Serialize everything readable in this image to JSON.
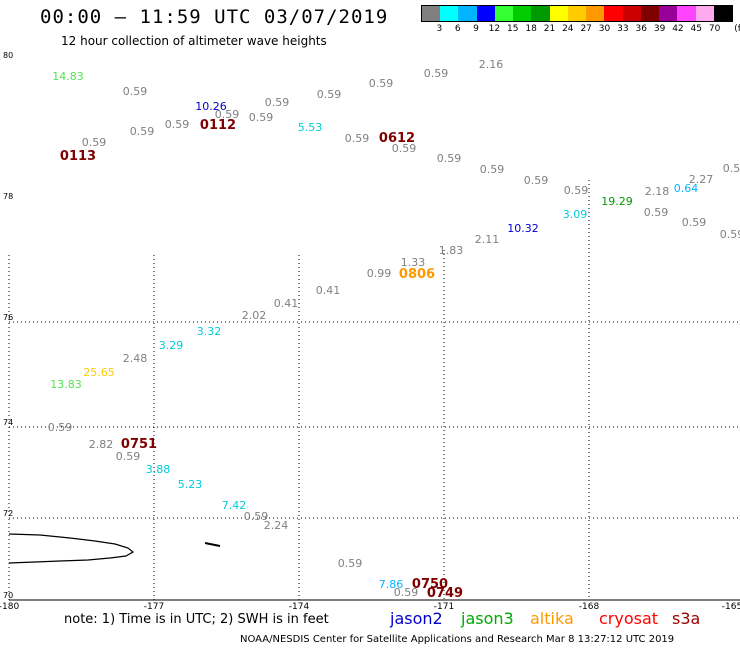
{
  "header": {
    "title": "00:00 – 11:59 UTC 03/07/2019",
    "subtitle": "12 hour collection of altimeter wave heights"
  },
  "scale": {
    "unit": "(ft)",
    "colors": [
      "#808080",
      "#00ffff",
      "#00b4ff",
      "#0000ff",
      "#33ff33",
      "#00cc00",
      "#009900",
      "#ffff00",
      "#ffcc00",
      "#ff9900",
      "#ff0000",
      "#cc0000",
      "#800000",
      "#990099",
      "#ff44ff",
      "#ffaaee",
      "#000000"
    ],
    "labels": [
      "3",
      "6",
      "9",
      "12",
      "15",
      "18",
      "21",
      "24",
      "27",
      "30",
      "33",
      "36",
      "39",
      "42",
      "45",
      "70"
    ]
  },
  "axes": {
    "lat_labels": [
      "80",
      "78",
      "76",
      "74",
      "72",
      "70"
    ],
    "lon_labels": [
      "-180",
      "-177",
      "-174",
      "-171",
      "-168",
      "-165"
    ]
  },
  "points": [
    {
      "t": "14.83",
      "c": "#55e255"
    },
    {
      "t": "0.59",
      "c": "#808080"
    },
    {
      "t": "10.26",
      "c": "#0000cc"
    },
    {
      "t": "0.59",
      "c": "#808080"
    },
    {
      "t": "0.59",
      "c": "#808080"
    },
    {
      "t": "0.59",
      "c": "#808080"
    },
    {
      "t": "0.59",
      "c": "#808080"
    },
    {
      "t": "0.59",
      "c": "#808080"
    },
    {
      "t": "2.16",
      "c": "#808080"
    },
    {
      "t": "0.59",
      "c": "#808080"
    },
    {
      "t": "0.59",
      "c": "#808080"
    },
    {
      "t": "0.59",
      "c": "#808080"
    },
    {
      "t": "0.59",
      "c": "#808080"
    },
    {
      "t": "5.53",
      "c": "#00ccdd"
    },
    {
      "t": "0.59",
      "c": "#808080"
    },
    {
      "t": "0.59",
      "c": "#808080"
    },
    {
      "t": "0.59",
      "c": "#808080"
    },
    {
      "t": "0.59",
      "c": "#808080"
    },
    {
      "t": "0.59",
      "c": "#808080"
    },
    {
      "t": "0.59",
      "c": "#808080"
    },
    {
      "t": "19.29",
      "c": "#009900"
    },
    {
      "t": "0.64",
      "c": "#00b4ff"
    },
    {
      "t": "2.18",
      "c": "#808080"
    },
    {
      "t": "2.27",
      "c": "#808080"
    },
    {
      "t": "3.09",
      "c": "#00ccdd"
    },
    {
      "t": "0.59",
      "c": "#808080"
    },
    {
      "t": "0.59",
      "c": "#808080"
    },
    {
      "t": "0.59",
      "c": "#808080"
    },
    {
      "t": "10.32",
      "c": "#0000cc"
    },
    {
      "t": "2.11",
      "c": "#808080"
    },
    {
      "t": "1.83",
      "c": "#808080"
    },
    {
      "t": "1.33",
      "c": "#808080"
    },
    {
      "t": "0.99",
      "c": "#808080"
    },
    {
      "t": "0.41",
      "c": "#808080"
    },
    {
      "t": "0.41",
      "c": "#808080"
    },
    {
      "t": "2.02",
      "c": "#808080"
    },
    {
      "t": "3.32",
      "c": "#00ccdd"
    },
    {
      "t": "3.29",
      "c": "#00ccdd"
    },
    {
      "t": "2.48",
      "c": "#808080"
    },
    {
      "t": "25.65",
      "c": "#ffcc00"
    },
    {
      "t": "13.83",
      "c": "#55e255"
    },
    {
      "t": "0.59",
      "c": "#808080"
    },
    {
      "t": "2.82",
      "c": "#808080"
    },
    {
      "t": "0.59",
      "c": "#808080"
    },
    {
      "t": "3.88",
      "c": "#00ccdd"
    },
    {
      "t": "5.23",
      "c": "#00ccdd"
    },
    {
      "t": "7.42",
      "c": "#00ccdd"
    },
    {
      "t": "0.59",
      "c": "#808080"
    },
    {
      "t": "2.24",
      "c": "#808080"
    },
    {
      "t": "0.59",
      "c": "#808080"
    },
    {
      "t": "7.86",
      "c": "#00b4ff"
    },
    {
      "t": "0.59",
      "c": "#808080"
    },
    {
      "t": "0.59",
      "c": "#808080"
    },
    {
      "t": "2.",
      "c": "#808080"
    }
  ],
  "times": [
    {
      "t": "0113",
      "c": "#800000"
    },
    {
      "t": "0112",
      "c": "#800000"
    },
    {
      "t": "0612",
      "c": "#800000"
    },
    {
      "t": "0806",
      "c": "#ff9900"
    },
    {
      "t": "0751",
      "c": "#800000"
    },
    {
      "t": "0750",
      "c": "#800000"
    },
    {
      "t": "0749",
      "c": "#800000"
    }
  ],
  "note": "note:  1) Time is in UTC;  2) SWH is in feet",
  "legend": [
    {
      "label": "jason2",
      "color": "#0000cc"
    },
    {
      "label": "jason3",
      "color": "#00aa00"
    },
    {
      "label": "altika",
      "color": "#ff9900"
    },
    {
      "label": "cryosat",
      "color": "#ff0000"
    },
    {
      "label": "s3a",
      "color": "#990000"
    }
  ],
  "footer": "NOAA/NESDIS Center for Satellite Applications and Research    Mar  8 13:27:12 UTC 2019"
}
